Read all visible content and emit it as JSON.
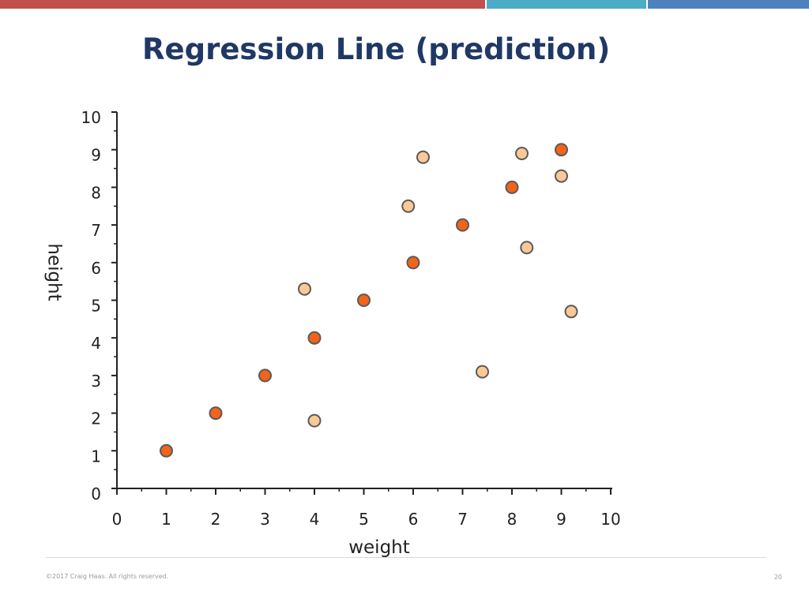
{
  "slide": {
    "title": "Regression Line (prediction)",
    "copyright": "©2017 Craig Haas. All rights reserved.",
    "page_number": "20"
  },
  "colors": {
    "title": "#1f3864",
    "top_bar": [
      "#c0504d",
      "#4bacc6",
      "#4f81bd"
    ],
    "on_line_point": "#f26419",
    "scattered_point": "#fbc896",
    "point_stroke": "#5a5a5a",
    "axis": "#222222",
    "footer_line": "#d9d9d9"
  },
  "chart_data": {
    "type": "scatter",
    "title": "",
    "xlabel": "weight",
    "ylabel": "height",
    "xlim": [
      0,
      10
    ],
    "ylim": [
      0,
      10
    ],
    "x_ticks": [
      "0",
      "1",
      "2",
      "3",
      "4",
      "5",
      "6",
      "7",
      "8",
      "9",
      "10"
    ],
    "y_ticks": [
      "0",
      "1",
      "2",
      "3",
      "4",
      "5",
      "6",
      "7",
      "8",
      "9",
      "10"
    ],
    "minor_ticks": true,
    "grid": false,
    "legend": "none",
    "series": [
      {
        "color": "#f26419",
        "points": [
          [
            1,
            1
          ],
          [
            2,
            2
          ],
          [
            3,
            3
          ],
          [
            4,
            4
          ],
          [
            5,
            5
          ],
          [
            6,
            6
          ],
          [
            7,
            7
          ],
          [
            8,
            8
          ],
          [
            9,
            9
          ]
        ]
      },
      {
        "color": "#fbc896",
        "points": [
          [
            3.8,
            5.3
          ],
          [
            4.0,
            1.8
          ],
          [
            5.9,
            7.5
          ],
          [
            6.2,
            8.8
          ],
          [
            7.4,
            3.1
          ],
          [
            8.2,
            8.9
          ],
          [
            8.3,
            6.4
          ],
          [
            9.0,
            8.3
          ],
          [
            9.2,
            4.7
          ]
        ]
      }
    ]
  }
}
